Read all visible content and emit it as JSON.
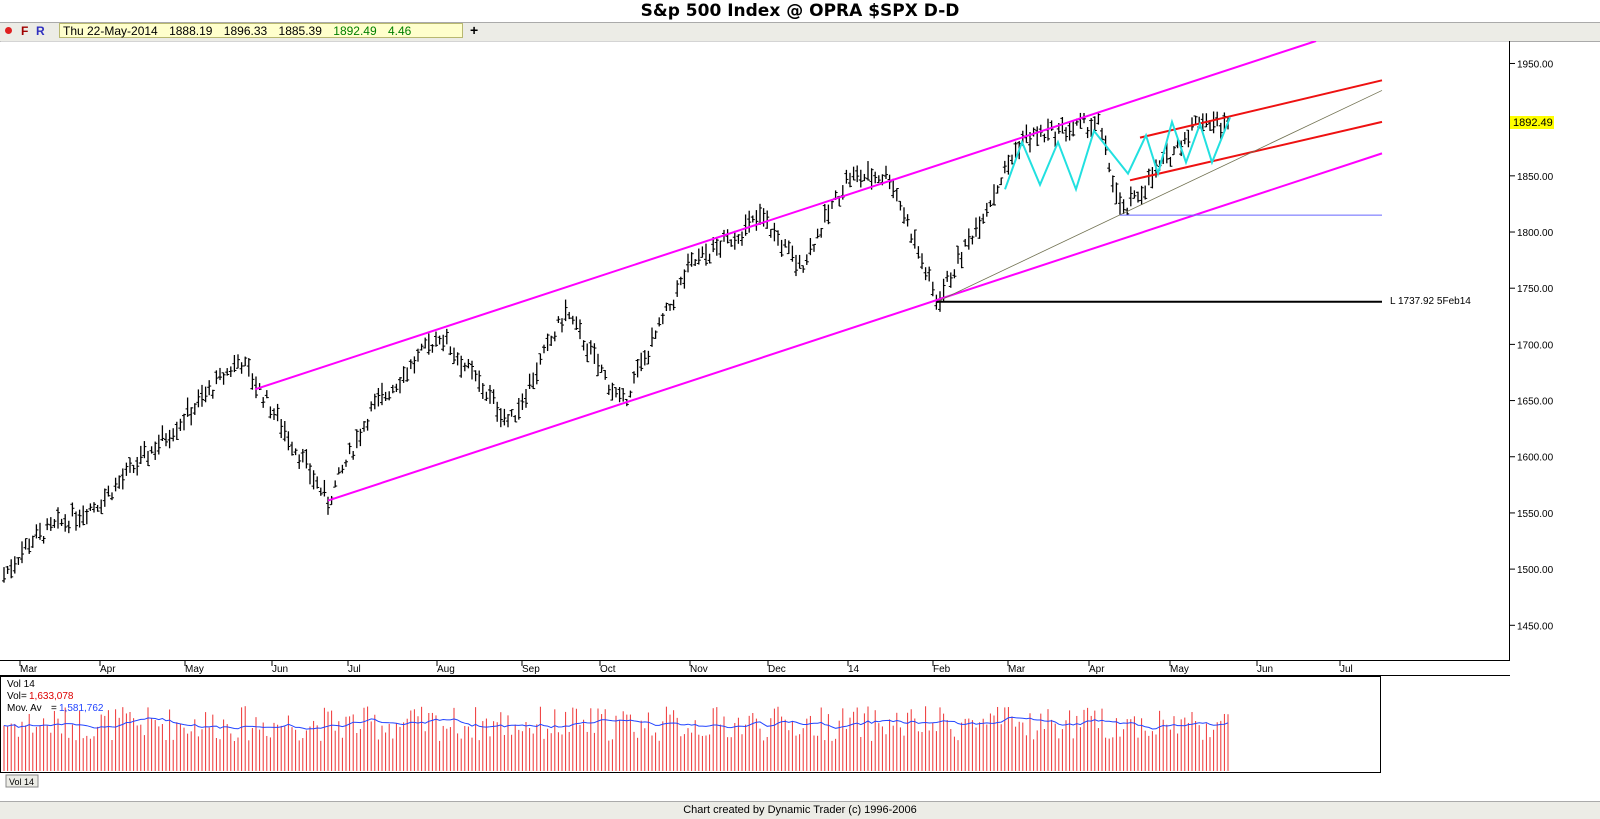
{
  "header": {
    "title": "S&p 500 Index @ OPRA $SPX   D-D"
  },
  "toolbar": {
    "f_label": "F",
    "r_label": "R",
    "quote_date": "Thu 22-May-2014",
    "quote_open": "1888.19",
    "quote_high": "1896.33",
    "quote_low": "1885.39",
    "quote_close": "1892.49",
    "quote_change": "4.46",
    "plus_label": "+"
  },
  "colors": {
    "channel_main": "#ff00ff",
    "channel_inner": "#ee1111",
    "abc_wave": "#22e0e0",
    "trendline": "#707050",
    "support_line": "#6666ff",
    "price_label_bg": "#ffff00",
    "volume_bar": "#ee3333",
    "volume_avg": "#2244ff"
  },
  "footer": {
    "credit": "Chart created by Dynamic Trader  (c) 1996-2006"
  },
  "chart_data": [
    {
      "type": "ohlc",
      "ylim": [
        1420,
        1970
      ],
      "y_ticks": [
        "1950.00",
        "1900.00",
        "1850.00",
        "1800.00",
        "1750.00",
        "1700.00",
        "1650.00",
        "1600.00",
        "1550.00",
        "1500.00",
        "1450.00"
      ],
      "x_ticks": [
        "Mar",
        "Apr",
        "May",
        "Jun",
        "Jul",
        "Aug",
        "Sep",
        "Oct",
        "Nov",
        "Dec",
        "14",
        "Feb",
        "Mar",
        "Apr",
        "May",
        "Jun",
        "Jul"
      ],
      "last_price_label": "1892.49",
      "annotation": "L 1737.92 5Feb14",
      "low_marker": {
        "date": "5Feb14",
        "value": 1737.92
      },
      "key_points": [
        {
          "date": "Feb13",
          "value": 1495
        },
        {
          "date": "Mar13",
          "value": 1525
        },
        {
          "date": "Apr13",
          "value": 1560
        },
        {
          "date": "May13",
          "value": 1640
        },
        {
          "date": "21May13",
          "value": 1687
        },
        {
          "date": "Jun13",
          "value": 1645
        },
        {
          "date": "24Jun13",
          "value": 1560
        },
        {
          "date": "Jul13",
          "value": 1640
        },
        {
          "date": "2Aug13",
          "value": 1709
        },
        {
          "date": "27Aug13",
          "value": 1630
        },
        {
          "date": "18Sep13",
          "value": 1729
        },
        {
          "date": "9Oct13",
          "value": 1646
        },
        {
          "date": "Nov13",
          "value": 1770
        },
        {
          "date": "27Nov13",
          "value": 1813
        },
        {
          "date": "13Dec13",
          "value": 1768
        },
        {
          "date": "31Dec13",
          "value": 1849
        },
        {
          "date": "15Jan14",
          "value": 1850
        },
        {
          "date": "5Feb14",
          "value": 1737.92
        },
        {
          "date": "7Mar14",
          "value": 1883
        },
        {
          "date": "4Apr14",
          "value": 1897
        },
        {
          "date": "11Apr14",
          "value": 1815
        },
        {
          "date": "13May14",
          "value": 1902
        },
        {
          "date": "22May14",
          "value": 1892.49
        }
      ]
    },
    {
      "type": "bar",
      "panel": "Vol 14",
      "legend": [
        {
          "label": "Vol",
          "value": "1,633,078"
        },
        {
          "label": "Mov. Av",
          "value": "1,581,762"
        }
      ],
      "tab_label": "Vol 14"
    }
  ]
}
